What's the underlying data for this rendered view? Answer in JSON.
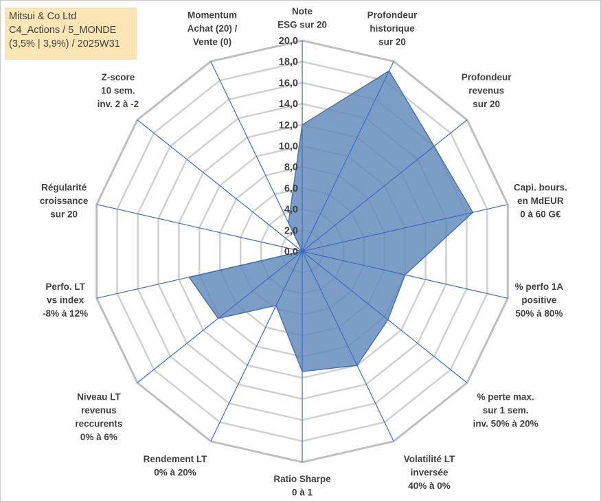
{
  "info": {
    "company": "Mitsui & Co Ltd",
    "portfolio": "C4_Actions / 5_MONDE",
    "params": "(3,5% | 3,9%) / 2025W31"
  },
  "colors": {
    "fill": "#5b85b8",
    "fill_opacity": 0.8,
    "series_line": "#4a72b0",
    "grid": "#d0d0d0",
    "outer_ring": "#bfbfbf",
    "spoke": "#3b6cc0",
    "info_bg": "#fbe5b4"
  },
  "chart_data": {
    "type": "radar",
    "rlim": [
      0,
      20
    ],
    "grid": true,
    "tick_labels": [
      "0,0",
      "2,0",
      "4,0",
      "6,0",
      "8,0",
      "10,0",
      "12,0",
      "14,0",
      "16,0",
      "18,0",
      "20,0"
    ],
    "axes": [
      [
        "Note",
        "ESG sur 20"
      ],
      [
        "Profondeur",
        "historique",
        "sur 20"
      ],
      [
        "Profondeur",
        "revenus",
        "sur 20"
      ],
      [
        "Capi. bours.",
        "en MdEUR",
        "0 à 60 G€"
      ],
      [
        "% perfo 1A",
        "positive",
        "50% à 80%"
      ],
      [
        "% perte max.",
        "sur 1 sem.",
        "inv. 50% à 20%"
      ],
      [
        "Volatilité LT",
        "inversée",
        "40% à 0%"
      ],
      [
        "Ratio Sharpe",
        "0 à 1"
      ],
      [
        "Rendement LT",
        "0% à 20%"
      ],
      [
        "Niveau LT",
        "revenus",
        "reccurents",
        "0% à 6%"
      ],
      [
        "Perfo. LT",
        "vs index",
        "-8% à 12%"
      ],
      [
        "Régularité",
        "croissance",
        "sur 20"
      ],
      [
        "Z-score",
        "10 sem.",
        "inv. 2 à -2"
      ],
      [
        "Momentum",
        "Achat (20) /",
        "Vente (0)"
      ]
    ],
    "values": [
      12.0,
      19.0,
      16.0,
      16.6,
      10.0,
      10.4,
      12.0,
      11.4,
      5.7,
      10.2,
      11.0,
      0.0,
      0.0,
      3.0
    ]
  }
}
